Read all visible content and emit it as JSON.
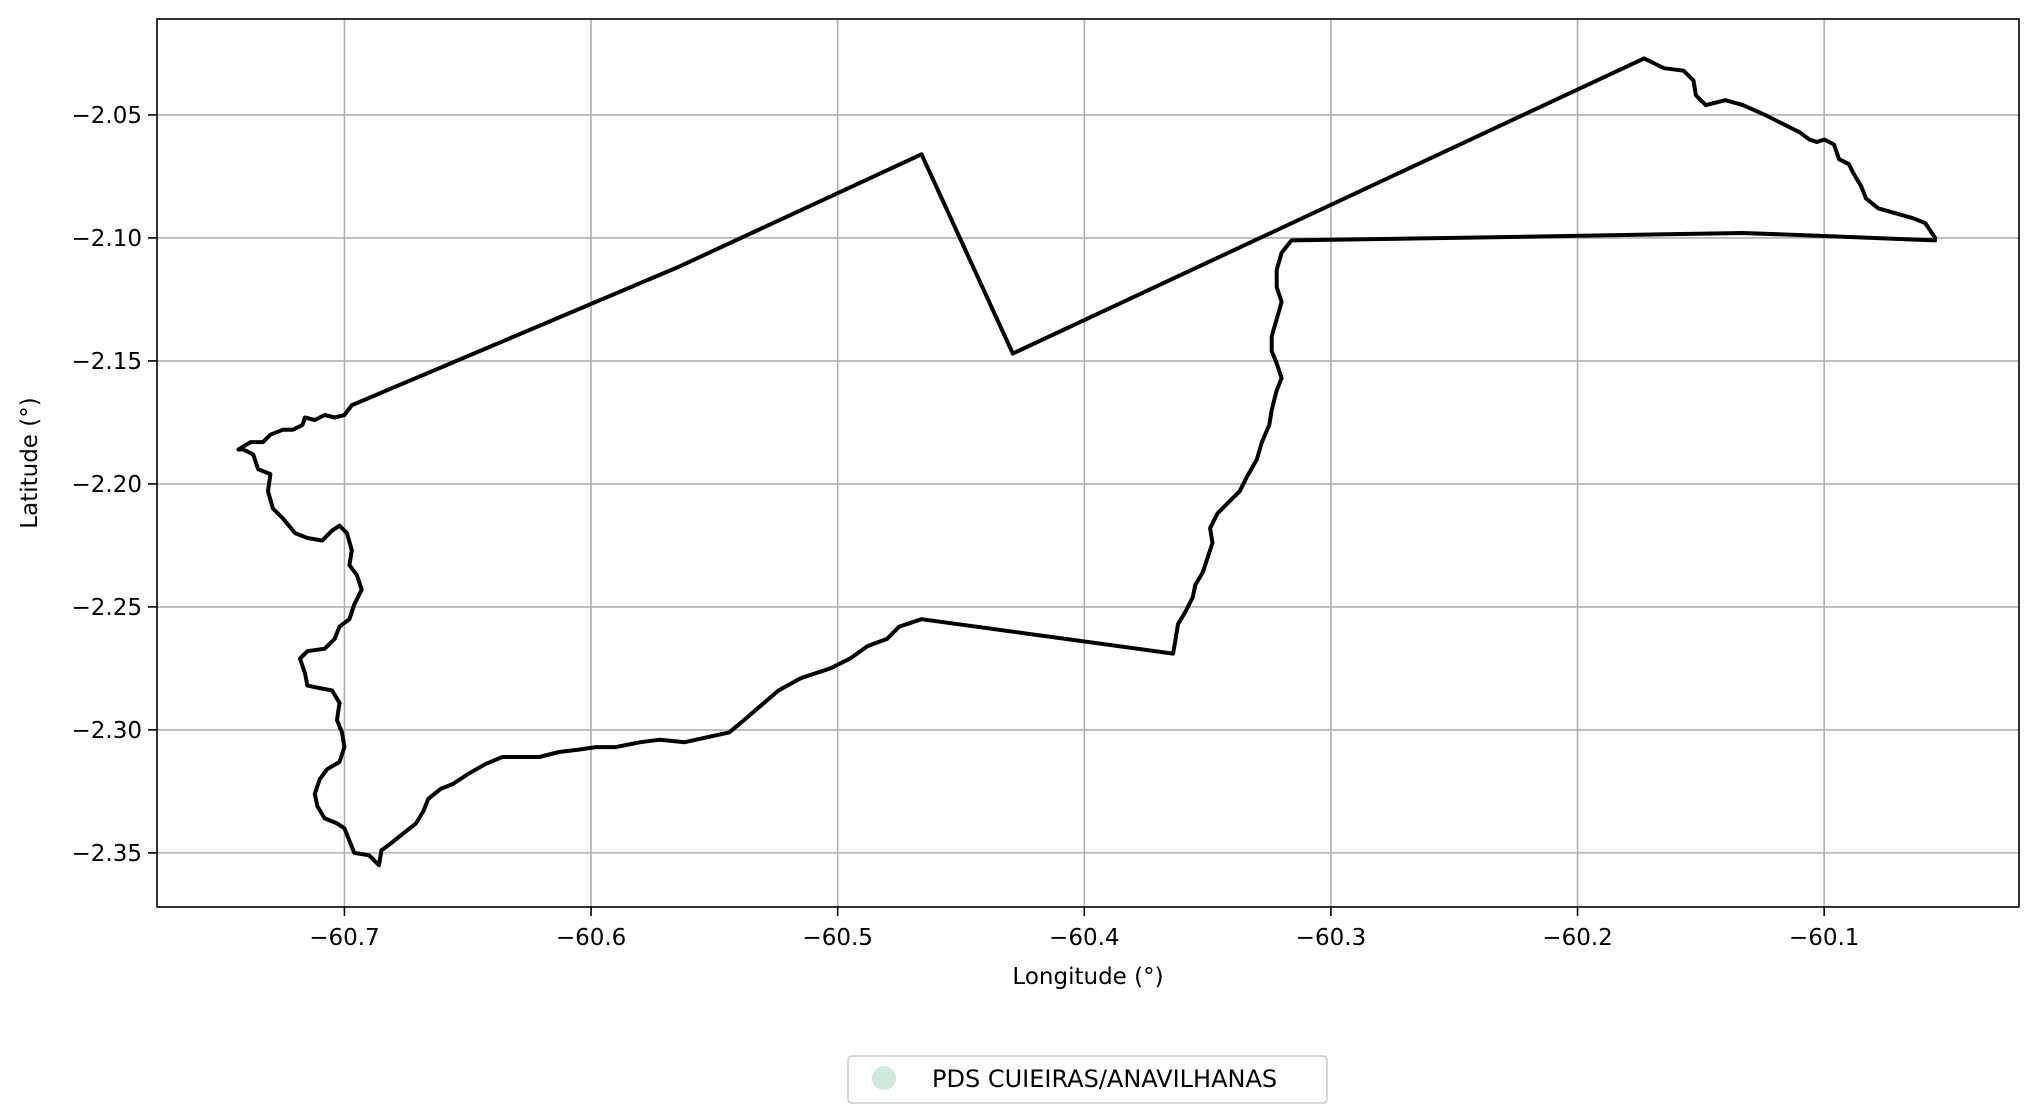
{
  "chart_data": {
    "type": "map",
    "title": "",
    "xlabel": "Longitude (°)",
    "ylabel": "Latitude (°)",
    "xlim": [
      -60.776,
      -60.021
    ],
    "ylim": [
      -2.372,
      -2.011
    ],
    "x_ticks": [
      {
        "value": -60.7,
        "label": "−60.7"
      },
      {
        "value": -60.6,
        "label": "−60.6"
      },
      {
        "value": -60.5,
        "label": "−60.5"
      },
      {
        "value": -60.4,
        "label": "−60.4"
      },
      {
        "value": -60.3,
        "label": "−60.3"
      },
      {
        "value": -60.2,
        "label": "−60.2"
      },
      {
        "value": -60.1,
        "label": "−60.1"
      }
    ],
    "y_ticks": [
      {
        "value": -2.05,
        "label": "−2.05"
      },
      {
        "value": -2.1,
        "label": "−2.10"
      },
      {
        "value": -2.15,
        "label": "−2.15"
      },
      {
        "value": -2.2,
        "label": "−2.20"
      },
      {
        "value": -2.25,
        "label": "−2.25"
      },
      {
        "value": -2.3,
        "label": "−2.30"
      },
      {
        "value": -2.35,
        "label": "−2.35"
      }
    ],
    "grid": true,
    "legend_position": "bottom-center",
    "series": [
      {
        "name": "PDS CUIEIRAS/ANAVILHANAS",
        "fill_color": "#cfeadc",
        "edge_color": "#000000",
        "boundary": [
          [
            -60.697,
            -2.168
          ],
          [
            -60.565,
            -2.112
          ],
          [
            -60.466,
            -2.066
          ],
          [
            -60.429,
            -2.147
          ],
          [
            -60.173,
            -2.027
          ],
          [
            -60.165,
            -2.031
          ],
          [
            -60.157,
            -2.032
          ],
          [
            -60.153,
            -2.036
          ],
          [
            -60.152,
            -2.042
          ],
          [
            -60.148,
            -2.046
          ],
          [
            -60.14,
            -2.044
          ],
          [
            -60.133,
            -2.046
          ],
          [
            -60.124,
            -2.05
          ],
          [
            -60.116,
            -2.054
          ],
          [
            -60.11,
            -2.057
          ],
          [
            -60.106,
            -2.06
          ],
          [
            -60.103,
            -2.061
          ],
          [
            -60.1,
            -2.06
          ],
          [
            -60.096,
            -2.062
          ],
          [
            -60.094,
            -2.068
          ],
          [
            -60.09,
            -2.07
          ],
          [
            -60.088,
            -2.074
          ],
          [
            -60.085,
            -2.079
          ],
          [
            -60.083,
            -2.084
          ],
          [
            -60.078,
            -2.088
          ],
          [
            -60.071,
            -2.09
          ],
          [
            -60.064,
            -2.092
          ],
          [
            -60.059,
            -2.094
          ],
          [
            -60.057,
            -2.097
          ],
          [
            -60.055,
            -2.1
          ],
          [
            -60.055,
            -2.101
          ],
          [
            -60.105,
            -2.099
          ],
          [
            -60.133,
            -2.098
          ],
          [
            -60.25,
            -2.1
          ],
          [
            -60.316,
            -2.101
          ],
          [
            -60.32,
            -2.106
          ],
          [
            -60.322,
            -2.113
          ],
          [
            -60.322,
            -2.12
          ],
          [
            -60.32,
            -2.126
          ],
          [
            -60.322,
            -2.133
          ],
          [
            -60.324,
            -2.14
          ],
          [
            -60.324,
            -2.146
          ],
          [
            -60.322,
            -2.151
          ],
          [
            -60.32,
            -2.157
          ],
          [
            -60.322,
            -2.162
          ],
          [
            -60.324,
            -2.17
          ],
          [
            -60.325,
            -2.176
          ],
          [
            -60.328,
            -2.183
          ],
          [
            -60.33,
            -2.19
          ],
          [
            -60.334,
            -2.197
          ],
          [
            -60.337,
            -2.203
          ],
          [
            -60.341,
            -2.207
          ],
          [
            -60.346,
            -2.212
          ],
          [
            -60.349,
            -2.218
          ],
          [
            -60.348,
            -2.224
          ],
          [
            -60.35,
            -2.23
          ],
          [
            -60.352,
            -2.236
          ],
          [
            -60.355,
            -2.241
          ],
          [
            -60.356,
            -2.246
          ],
          [
            -60.359,
            -2.252
          ],
          [
            -60.362,
            -2.257
          ],
          [
            -60.363,
            -2.263
          ],
          [
            -60.364,
            -2.269
          ],
          [
            -60.466,
            -2.255
          ],
          [
            -60.475,
            -2.258
          ],
          [
            -60.48,
            -2.263
          ],
          [
            -60.488,
            -2.266
          ],
          [
            -60.495,
            -2.271
          ],
          [
            -60.503,
            -2.275
          ],
          [
            -60.515,
            -2.279
          ],
          [
            -60.524,
            -2.284
          ],
          [
            -60.531,
            -2.29
          ],
          [
            -60.538,
            -2.296
          ],
          [
            -60.544,
            -2.301
          ],
          [
            -60.553,
            -2.303
          ],
          [
            -60.562,
            -2.305
          ],
          [
            -60.572,
            -2.304
          ],
          [
            -60.58,
            -2.305
          ],
          [
            -60.59,
            -2.307
          ],
          [
            -60.598,
            -2.307
          ],
          [
            -60.605,
            -2.308
          ],
          [
            -60.613,
            -2.309
          ],
          [
            -60.621,
            -2.311
          ],
          [
            -60.628,
            -2.311
          ],
          [
            -60.636,
            -2.311
          ],
          [
            -60.643,
            -2.314
          ],
          [
            -60.65,
            -2.318
          ],
          [
            -60.656,
            -2.322
          ],
          [
            -60.661,
            -2.324
          ],
          [
            -60.666,
            -2.328
          ],
          [
            -60.668,
            -2.333
          ],
          [
            -60.671,
            -2.338
          ],
          [
            -60.676,
            -2.342
          ],
          [
            -60.681,
            -2.346
          ],
          [
            -60.685,
            -2.349
          ],
          [
            -60.686,
            -2.355
          ],
          [
            -60.69,
            -2.351
          ],
          [
            -60.696,
            -2.35
          ],
          [
            -60.698,
            -2.345
          ],
          [
            -60.7,
            -2.34
          ],
          [
            -60.703,
            -2.338
          ],
          [
            -60.708,
            -2.336
          ],
          [
            -60.711,
            -2.331
          ],
          [
            -60.712,
            -2.326
          ],
          [
            -60.71,
            -2.32
          ],
          [
            -60.707,
            -2.316
          ],
          [
            -60.702,
            -2.313
          ],
          [
            -60.7,
            -2.307
          ],
          [
            -60.701,
            -2.301
          ],
          [
            -60.703,
            -2.296
          ],
          [
            -60.702,
            -2.289
          ],
          [
            -60.705,
            -2.284
          ],
          [
            -60.71,
            -2.283
          ],
          [
            -60.715,
            -2.282
          ],
          [
            -60.716,
            -2.277
          ],
          [
            -60.718,
            -2.271
          ],
          [
            -60.715,
            -2.268
          ],
          [
            -60.708,
            -2.267
          ],
          [
            -60.704,
            -2.263
          ],
          [
            -60.702,
            -2.258
          ],
          [
            -60.698,
            -2.255
          ],
          [
            -60.696,
            -2.249
          ],
          [
            -60.693,
            -2.243
          ],
          [
            -60.695,
            -2.237
          ],
          [
            -60.698,
            -2.233
          ],
          [
            -60.697,
            -2.227
          ],
          [
            -60.699,
            -2.22
          ],
          [
            -60.702,
            -2.217
          ],
          [
            -60.705,
            -2.219
          ],
          [
            -60.709,
            -2.223
          ],
          [
            -60.715,
            -2.222
          ],
          [
            -60.72,
            -2.22
          ],
          [
            -60.725,
            -2.214
          ],
          [
            -60.729,
            -2.21
          ],
          [
            -60.731,
            -2.203
          ],
          [
            -60.73,
            -2.196
          ],
          [
            -60.735,
            -2.194
          ],
          [
            -60.737,
            -2.188
          ],
          [
            -60.741,
            -2.186
          ],
          [
            -60.743,
            -2.186
          ],
          [
            -60.738,
            -2.183
          ],
          [
            -60.733,
            -2.183
          ],
          [
            -60.73,
            -2.18
          ],
          [
            -60.725,
            -2.178
          ],
          [
            -60.721,
            -2.178
          ],
          [
            -60.717,
            -2.176
          ],
          [
            -60.716,
            -2.173
          ],
          [
            -60.712,
            -2.174
          ],
          [
            -60.708,
            -2.172
          ],
          [
            -60.704,
            -2.173
          ],
          [
            -60.7,
            -2.172
          ],
          [
            -60.697,
            -2.168
          ]
        ]
      }
    ]
  }
}
